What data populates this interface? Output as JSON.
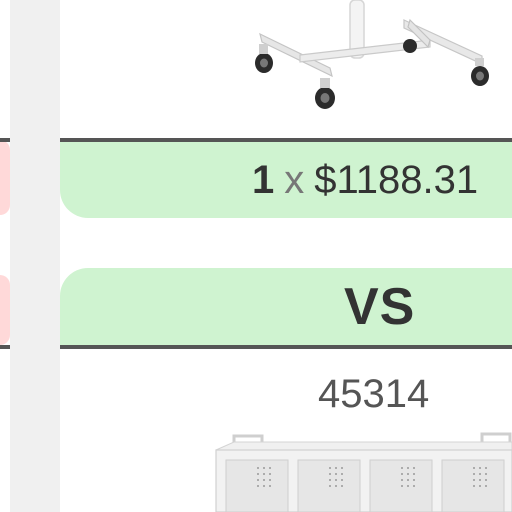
{
  "comparison": {
    "top_item": {
      "image_icon": "rolling-stand-image",
      "quantity": "1",
      "times_symbol": "x",
      "price": "$1188.31"
    },
    "vs_label": "VS",
    "bottom_item": {
      "product_id": "45314",
      "image_icon": "shelf-unit-image"
    }
  },
  "colors": {
    "bar_green": "#cff3d0",
    "accent_pink": "#ffd9d9",
    "rule_gray": "#555555",
    "gutter_gray": "#f0f0f0"
  }
}
